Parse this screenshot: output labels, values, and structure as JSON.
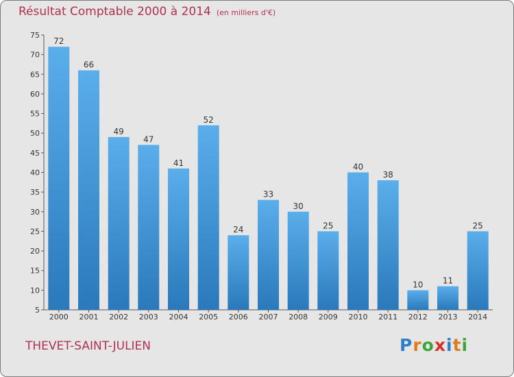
{
  "header": {
    "title": "Résultat Comptable 2000 à 2014",
    "subtitle": "(en milliers d'€)"
  },
  "commune": "THEVET-SAINT-JULIEN",
  "logo": {
    "letters": [
      "P",
      "r",
      "o",
      "x",
      "i",
      "t",
      "i"
    ],
    "colors": [
      "#2e7fc6",
      "#e07a1a",
      "#3aa635",
      "#d3322b",
      "#2e7fc6",
      "#e07a1a",
      "#3aa635"
    ]
  },
  "colors": {
    "bar_top": "#5aaeea",
    "bar_bottom": "#2a79bb",
    "title": "#b03050"
  },
  "chart_data": {
    "type": "bar",
    "title": "Résultat Comptable 2000 à 2014",
    "subtitle": "(en milliers d'€)",
    "categories": [
      "2000",
      "2001",
      "2002",
      "2003",
      "2004",
      "2005",
      "2006",
      "2007",
      "2008",
      "2009",
      "2010",
      "2011",
      "2012",
      "2013",
      "2014"
    ],
    "values": [
      72,
      66,
      49,
      47,
      41,
      52,
      24,
      33,
      30,
      25,
      40,
      38,
      10,
      11,
      25
    ],
    "xlabel": "",
    "ylabel": "",
    "ylim": [
      5,
      75
    ],
    "yticks": [
      5,
      10,
      15,
      20,
      25,
      30,
      35,
      40,
      45,
      50,
      55,
      60,
      65,
      70,
      75
    ],
    "grid": false,
    "data_labels": true
  }
}
